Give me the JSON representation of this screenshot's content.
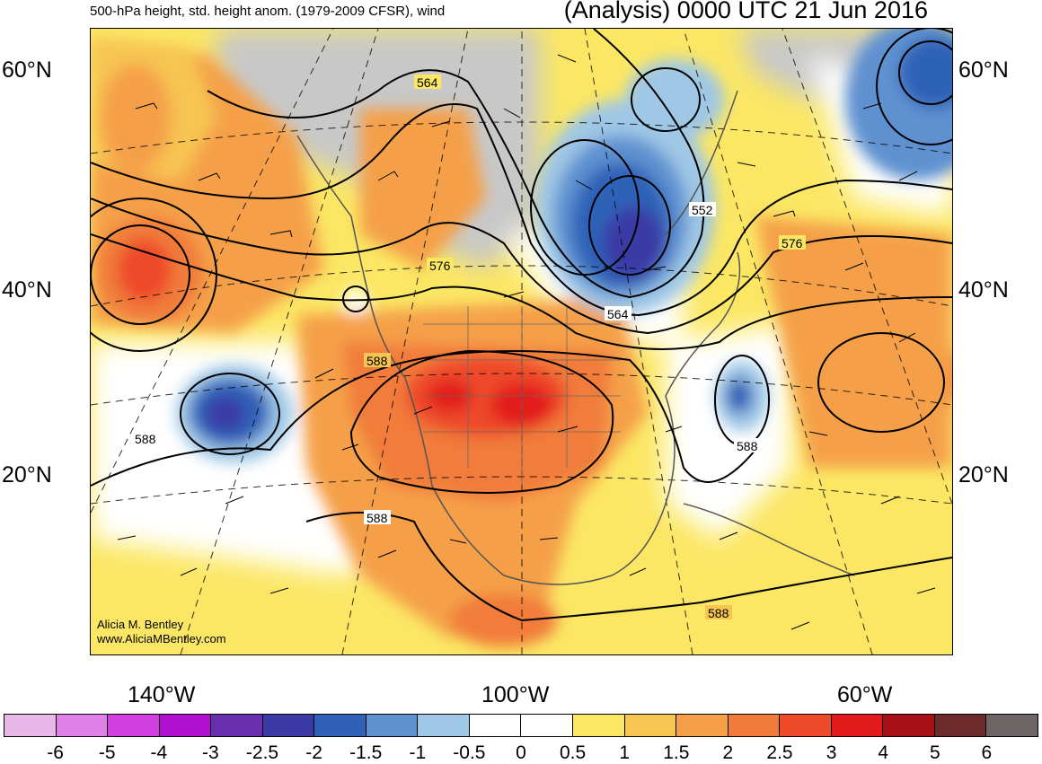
{
  "header": {
    "title_left": "500-hPa height, std. height anom. (1979-2009 CFSR), wind",
    "title_right": "(Analysis) 0000 UTC 21 Jun 2016"
  },
  "axes": {
    "lat_left": [
      "60°N",
      "40°N",
      "20°N"
    ],
    "lat_right": [
      "60°N",
      "40°N",
      "20°N"
    ],
    "lon_bottom": [
      "140°W",
      "100°W",
      "60°W"
    ]
  },
  "contour_labels": [
    "564",
    "576",
    "552",
    "576",
    "564",
    "588",
    "588",
    "588",
    "588",
    "588"
  ],
  "credit": {
    "line1": "Alicia M. Bentley",
    "line2": "www.AliciaMBentley.com"
  },
  "colorbar": {
    "colors": [
      "#e8b8e8",
      "#e07fe8",
      "#d23fe0",
      "#b011d0",
      "#6a2fb0",
      "#3b3aa6",
      "#2f62b7",
      "#5f91d0",
      "#9fc7e6",
      "#ffffff",
      "#ffffff",
      "#fbe764",
      "#f7c552",
      "#f5a048",
      "#f17b3a",
      "#ee4a29",
      "#e31a1c",
      "#a50f15",
      "#6e2b2b",
      "#6e6566"
    ],
    "labels": [
      "-6",
      "-5",
      "-4",
      "-3",
      "-2.5",
      "-2",
      "-1.5",
      "-1",
      "-0.5",
      "0",
      "0.5",
      "1",
      "1.5",
      "2",
      "2.5",
      "3",
      "4",
      "5",
      "6"
    ]
  }
}
